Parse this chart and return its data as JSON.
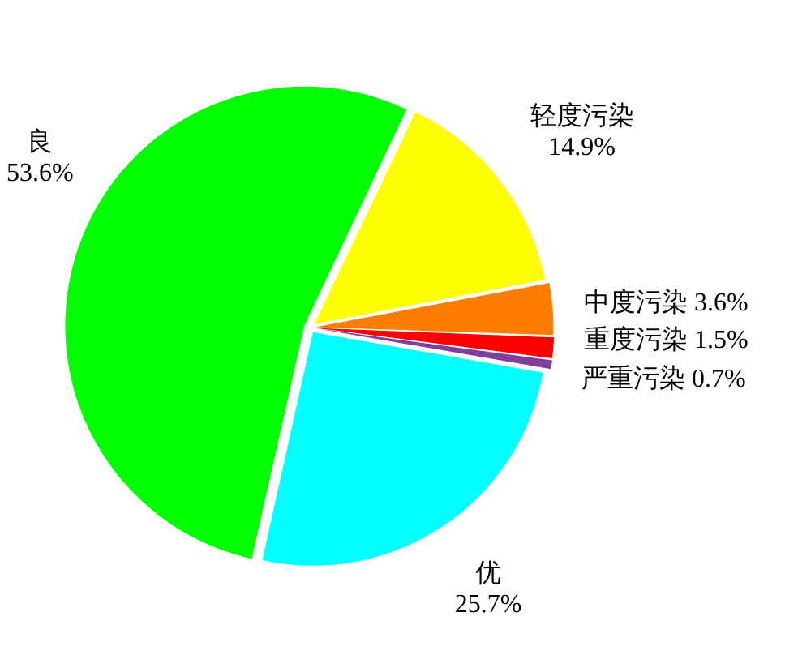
{
  "chart_data": {
    "type": "pie",
    "categories": [
      "优",
      "良",
      "轻度污染",
      "中度污染",
      "重度污染",
      "严重污染"
    ],
    "values": [
      25.7,
      53.6,
      14.9,
      3.6,
      1.5,
      0.7
    ],
    "value_labels": [
      "25.7%",
      "53.6%",
      "14.9%",
      "3.6%",
      "1.5%",
      "0.7%"
    ],
    "colors": [
      "#00ffff",
      "#00ff00",
      "#ffff00",
      "#ff7e00",
      "#ff0000",
      "#7e3f9d"
    ],
    "legend": false
  }
}
